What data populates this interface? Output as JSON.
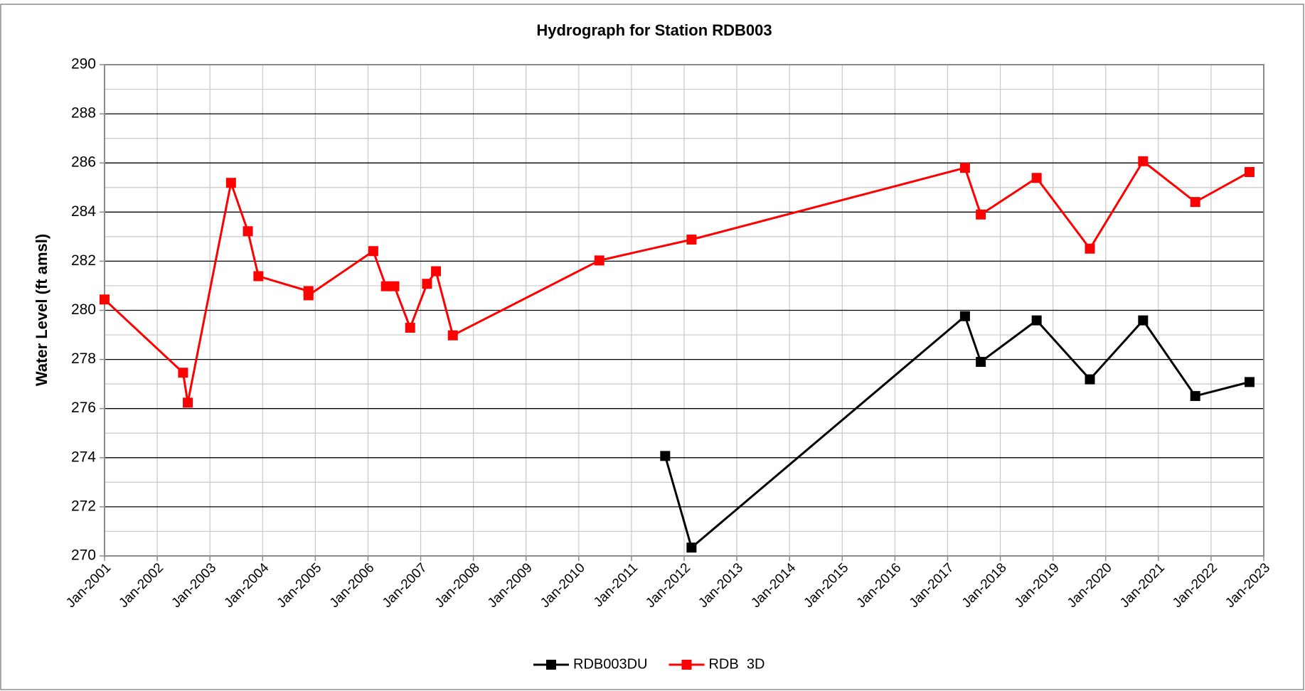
{
  "chart_data": {
    "type": "line",
    "title": "Hydrograph for Station RDB003",
    "y_label": "Water Level (ft amsl)",
    "xlim": [
      2001,
      2023
    ],
    "xticks": [
      {
        "value": 2001,
        "label": "Jan-2001"
      },
      {
        "value": 2002,
        "label": "Jan-2002"
      },
      {
        "value": 2003,
        "label": "Jan-2003"
      },
      {
        "value": 2004,
        "label": "Jan-2004"
      },
      {
        "value": 2005,
        "label": "Jan-2005"
      },
      {
        "value": 2006,
        "label": "Jan-2006"
      },
      {
        "value": 2007,
        "label": "Jan-2007"
      },
      {
        "value": 2008,
        "label": "Jan-2008"
      },
      {
        "value": 2009,
        "label": "Jan-2009"
      },
      {
        "value": 2010,
        "label": "Jan-2010"
      },
      {
        "value": 2011,
        "label": "Jan-2011"
      },
      {
        "value": 2012,
        "label": "Jan-2012"
      },
      {
        "value": 2013,
        "label": "Jan-2013"
      },
      {
        "value": 2014,
        "label": "Jan-2014"
      },
      {
        "value": 2015,
        "label": "Jan-2015"
      },
      {
        "value": 2016,
        "label": "Jan-2016"
      },
      {
        "value": 2017,
        "label": "Jan-2017"
      },
      {
        "value": 2018,
        "label": "Jan-2018"
      },
      {
        "value": 2019,
        "label": "Jan-2019"
      },
      {
        "value": 2020,
        "label": "Jan-2020"
      },
      {
        "value": 2021,
        "label": "Jan-2021"
      },
      {
        "value": 2022,
        "label": "Jan-2022"
      },
      {
        "value": 2023,
        "label": "Jan-2023"
      }
    ],
    "ylim": [
      270,
      290
    ],
    "yticks": [
      270,
      272,
      274,
      276,
      278,
      280,
      282,
      284,
      286,
      288,
      290
    ],
    "grid": true,
    "legend": "bottom",
    "series": [
      {
        "name": "RDB003DU",
        "color": "#000000",
        "x": [
          2011.64,
          2012.14,
          2017.33,
          2017.63,
          2018.69,
          2019.7,
          2020.71,
          2021.7,
          2022.73
        ],
        "values": [
          274.07,
          270.34,
          279.76,
          277.9,
          279.59,
          277.19,
          279.59,
          276.51,
          277.08
        ]
      },
      {
        "name": "RDB  3D",
        "color": "#ff0000",
        "x": [
          2001.0,
          2002.49,
          2002.58,
          2003.4,
          2003.72,
          2003.92,
          2004.87,
          2004.87,
          2006.1,
          2006.34,
          2006.5,
          2006.8,
          2007.12,
          2007.29,
          2007.61,
          2010.39,
          2012.14,
          2017.33,
          2017.63,
          2018.69,
          2019.7,
          2020.71,
          2021.7,
          2022.73
        ],
        "values": [
          280.44,
          277.46,
          276.24,
          285.19,
          283.22,
          281.39,
          280.78,
          280.61,
          282.41,
          280.98,
          280.98,
          279.29,
          281.08,
          281.59,
          278.98,
          282.03,
          282.88,
          285.8,
          283.9,
          285.39,
          282.51,
          286.07,
          284.41,
          285.63
        ]
      }
    ]
  }
}
